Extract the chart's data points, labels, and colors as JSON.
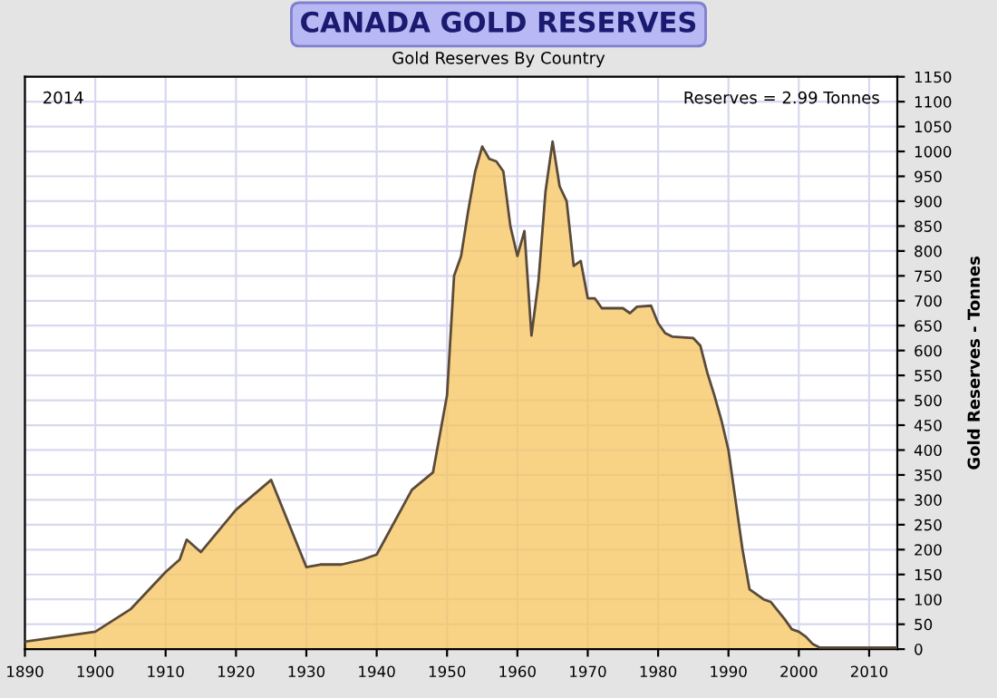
{
  "chart_data": {
    "type": "area",
    "title": "CANADA GOLD RESERVES",
    "subtitle": "Gold Reserves By Country",
    "ylabel": "Gold Reserves - Tonnes",
    "annotations": [
      "2014",
      "Reserves = 2.99 Tonnes"
    ],
    "series": [
      {
        "color": "#f6c45e",
        "x": [
          1890,
          1900,
          1905,
          1910,
          1912,
          1913,
          1915,
          1920,
          1925,
          1930,
          1932,
          1935,
          1938,
          1940,
          1945,
          1948,
          1950,
          1951,
          1952,
          1953,
          1954,
          1955,
          1956,
          1957,
          1958,
          1959,
          1960,
          1961,
          1962,
          1963,
          1964,
          1965,
          1966,
          1967,
          1968,
          1969,
          1970,
          1971,
          1972,
          1975,
          1976,
          1977,
          1979,
          1980,
          1981,
          1982,
          1985,
          1986,
          1987,
          1988,
          1989,
          1990,
          1991,
          1992,
          1993,
          1995,
          1996,
          1998,
          1999,
          2000,
          2001,
          2002,
          2003,
          2014
        ],
        "values": [
          15,
          35,
          80,
          155,
          180,
          220,
          195,
          280,
          340,
          165,
          170,
          170,
          180,
          190,
          320,
          355,
          510,
          750,
          790,
          880,
          960,
          1010,
          985,
          980,
          960,
          850,
          790,
          840,
          630,
          740,
          920,
          1020,
          930,
          900,
          770,
          780,
          705,
          705,
          685,
          685,
          675,
          688,
          690,
          655,
          635,
          628,
          625,
          610,
          555,
          510,
          460,
          400,
          300,
          200,
          120,
          100,
          95,
          60,
          40,
          35,
          25,
          10,
          3,
          3
        ]
      }
    ],
    "xlim": [
      1890,
      2014
    ],
    "xticks": [
      1890,
      1900,
      1910,
      1920,
      1930,
      1940,
      1950,
      1960,
      1970,
      1980,
      1990,
      2000,
      2010
    ],
    "ylim": [
      0,
      1150
    ],
    "yticks": [
      0,
      50,
      100,
      150,
      200,
      250,
      300,
      350,
      400,
      450,
      500,
      550,
      600,
      650,
      700,
      750,
      800,
      850,
      900,
      950,
      1000,
      1050,
      1100,
      1150
    ],
    "grid": true,
    "legend": false
  }
}
